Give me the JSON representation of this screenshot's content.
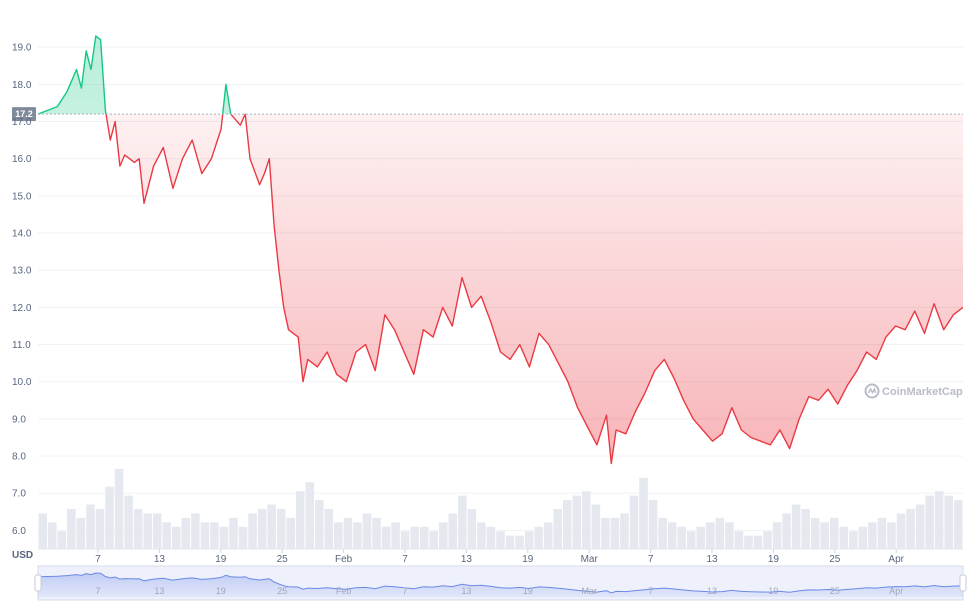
{
  "chart_data": {
    "type": "area",
    "currency_label": "USD",
    "y_ticks": [
      "6.0",
      "7.0",
      "8.0",
      "9.0",
      "10.0",
      "11.0",
      "12.0",
      "13.0",
      "14.0",
      "15.0",
      "16.0",
      "17.0",
      "18.0",
      "19.0"
    ],
    "ylim": [
      5.5,
      20.0
    ],
    "x_ticks": [
      "7",
      "13",
      "19",
      "25",
      "Feb",
      "7",
      "13",
      "19",
      "Mar",
      "7",
      "13",
      "19",
      "25",
      "Apr"
    ],
    "reference_price": 17.2,
    "reference_label": "17.2",
    "grid": true,
    "colors": {
      "above": "#16c784",
      "below": "#ea3943",
      "volume": "#e5e8ee",
      "navigator": "#6b88e7"
    },
    "watermark": "CoinMarketCap",
    "price_series": [
      [
        0,
        17.2
      ],
      [
        2,
        17.4
      ],
      [
        3,
        17.8
      ],
      [
        4,
        18.4
      ],
      [
        4.5,
        17.9
      ],
      [
        5,
        18.9
      ],
      [
        5.5,
        18.4
      ],
      [
        6,
        19.3
      ],
      [
        6.5,
        19.2
      ],
      [
        7,
        17.3
      ],
      [
        7.5,
        16.5
      ],
      [
        8,
        17.0
      ],
      [
        8.5,
        15.8
      ],
      [
        9,
        16.1
      ],
      [
        10,
        15.9
      ],
      [
        10.5,
        16.0
      ],
      [
        11,
        14.8
      ],
      [
        12,
        15.8
      ],
      [
        13,
        16.3
      ],
      [
        14,
        15.2
      ],
      [
        15,
        16.0
      ],
      [
        16,
        16.5
      ],
      [
        17,
        15.6
      ],
      [
        18,
        16.0
      ],
      [
        19,
        16.8
      ],
      [
        19.5,
        18.0
      ],
      [
        20,
        17.2
      ],
      [
        21,
        16.9
      ],
      [
        21.5,
        17.2
      ],
      [
        22,
        16.0
      ],
      [
        23,
        15.3
      ],
      [
        23.5,
        15.6
      ],
      [
        24,
        16.0
      ],
      [
        24.5,
        14.2
      ],
      [
        25,
        13.0
      ],
      [
        25.5,
        12.0
      ],
      [
        26,
        11.4
      ],
      [
        27,
        11.2
      ],
      [
        27.5,
        10.0
      ],
      [
        28,
        10.6
      ],
      [
        29,
        10.4
      ],
      [
        30,
        10.8
      ],
      [
        31,
        10.2
      ],
      [
        32,
        10.0
      ],
      [
        33,
        10.8
      ],
      [
        34,
        11.0
      ],
      [
        35,
        10.3
      ],
      [
        36,
        11.8
      ],
      [
        37,
        11.4
      ],
      [
        38,
        10.8
      ],
      [
        39,
        10.2
      ],
      [
        40,
        11.4
      ],
      [
        41,
        11.2
      ],
      [
        42,
        12.0
      ],
      [
        43,
        11.5
      ],
      [
        44,
        12.8
      ],
      [
        45,
        12.0
      ],
      [
        46,
        12.3
      ],
      [
        47,
        11.6
      ],
      [
        48,
        10.8
      ],
      [
        49,
        10.6
      ],
      [
        50,
        11.0
      ],
      [
        51,
        10.4
      ],
      [
        52,
        11.3
      ],
      [
        53,
        11.0
      ],
      [
        54,
        10.5
      ],
      [
        55,
        10.0
      ],
      [
        56,
        9.3
      ],
      [
        57,
        8.8
      ],
      [
        58,
        8.3
      ],
      [
        59,
        9.1
      ],
      [
        59.5,
        7.8
      ],
      [
        60,
        8.7
      ],
      [
        61,
        8.6
      ],
      [
        62,
        9.2
      ],
      [
        63,
        9.7
      ],
      [
        64,
        10.3
      ],
      [
        65,
        10.6
      ],
      [
        66,
        10.1
      ],
      [
        67,
        9.5
      ],
      [
        68,
        9.0
      ],
      [
        69,
        8.7
      ],
      [
        70,
        8.4
      ],
      [
        71,
        8.6
      ],
      [
        72,
        9.3
      ],
      [
        73,
        8.7
      ],
      [
        74,
        8.5
      ],
      [
        75,
        8.4
      ],
      [
        76,
        8.3
      ],
      [
        77,
        8.7
      ],
      [
        78,
        8.2
      ],
      [
        79,
        9.0
      ],
      [
        80,
        9.6
      ],
      [
        81,
        9.5
      ],
      [
        82,
        9.8
      ],
      [
        83,
        9.4
      ],
      [
        84,
        9.9
      ],
      [
        85,
        10.3
      ],
      [
        86,
        10.8
      ],
      [
        87,
        10.6
      ],
      [
        88,
        11.2
      ],
      [
        89,
        11.5
      ],
      [
        90,
        11.4
      ],
      [
        91,
        11.9
      ],
      [
        92,
        11.3
      ],
      [
        93,
        12.1
      ],
      [
        94,
        11.4
      ],
      [
        95,
        11.8
      ],
      [
        96,
        12.0
      ]
    ],
    "volume_series": [
      0.8,
      0.6,
      0.4,
      0.9,
      0.7,
      1.0,
      0.9,
      1.4,
      1.8,
      1.2,
      0.9,
      0.8,
      0.8,
      0.6,
      0.5,
      0.7,
      0.8,
      0.6,
      0.6,
      0.5,
      0.7,
      0.5,
      0.8,
      0.9,
      1.0,
      0.9,
      0.7,
      1.3,
      1.5,
      1.1,
      0.9,
      0.6,
      0.7,
      0.6,
      0.8,
      0.7,
      0.5,
      0.6,
      0.4,
      0.5,
      0.5,
      0.4,
      0.6,
      0.8,
      1.2,
      0.9,
      0.6,
      0.5,
      0.4,
      0.3,
      0.3,
      0.4,
      0.5,
      0.6,
      0.9,
      1.1,
      1.2,
      1.3,
      1.0,
      0.7,
      0.7,
      0.8,
      1.2,
      1.6,
      1.1,
      0.7,
      0.6,
      0.5,
      0.4,
      0.5,
      0.6,
      0.7,
      0.6,
      0.4,
      0.3,
      0.3,
      0.4,
      0.6,
      0.8,
      1.0,
      0.9,
      0.7,
      0.6,
      0.7,
      0.5,
      0.4,
      0.5,
      0.6,
      0.7,
      0.6,
      0.8,
      0.9,
      1.0,
      1.2,
      1.3,
      1.2,
      1.1
    ],
    "volume_ylim": [
      0,
      2.0
    ]
  }
}
